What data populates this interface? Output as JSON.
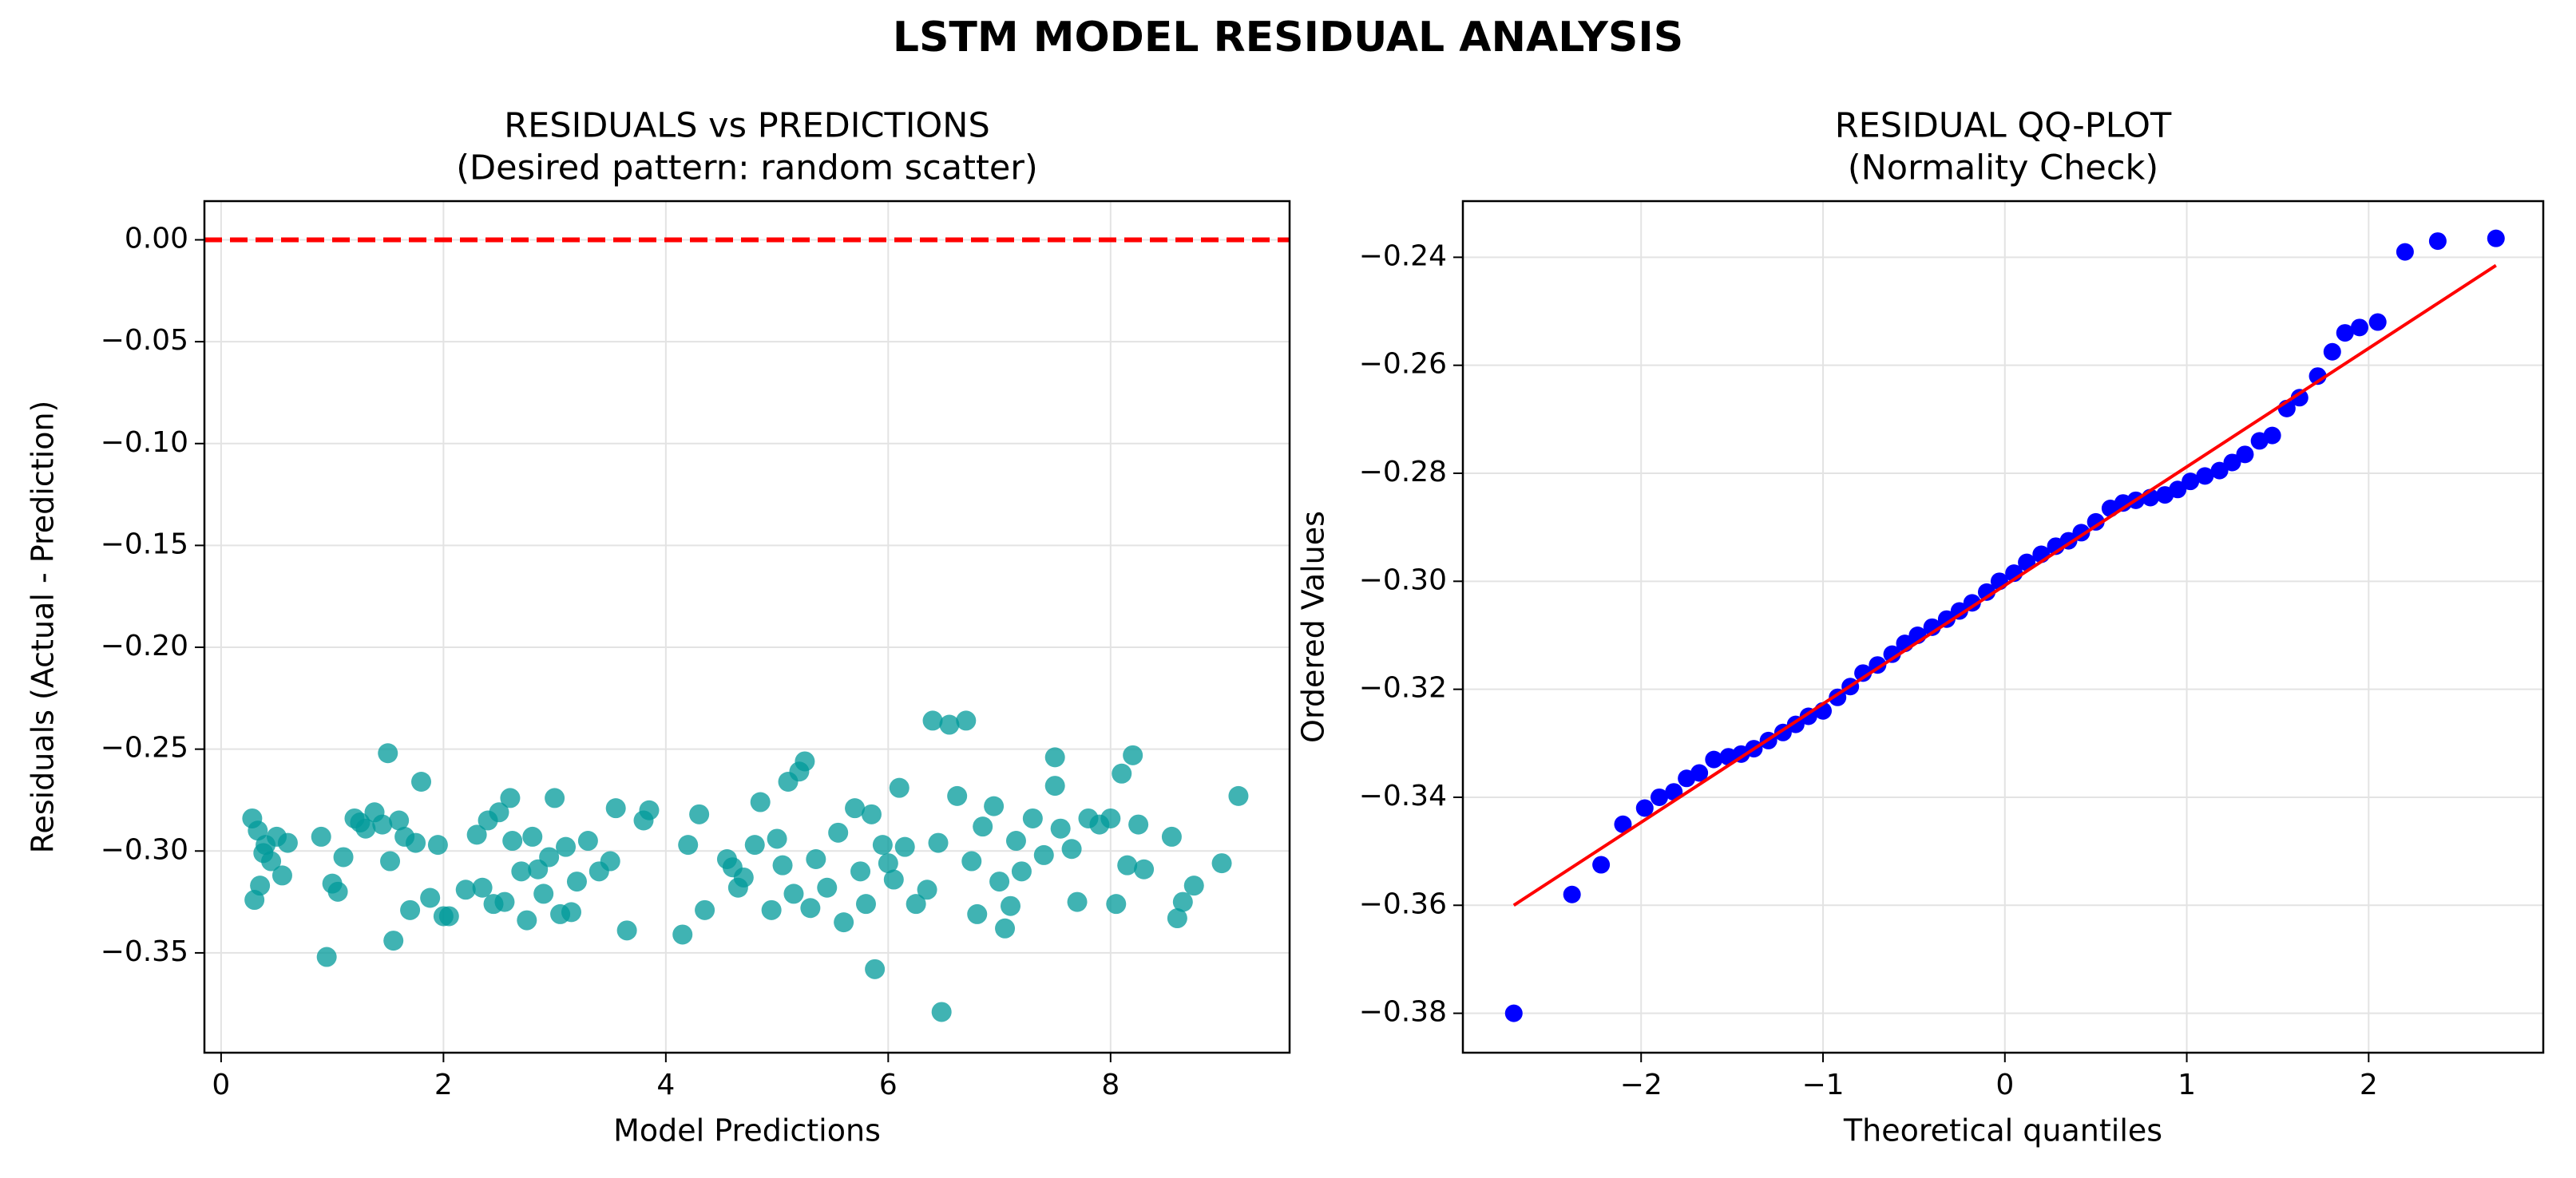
{
  "title": "LSTM MODEL RESIDUAL ANALYSIS",
  "chart_data": [
    {
      "type": "scatter",
      "title": "RESIDUALS vs PREDICTIONS",
      "subtitle": "(Desired pattern: random scatter)",
      "x_label": "Model Predictions",
      "y_label": "Residuals (Actual - Prediction)",
      "xlim": [
        -0.15,
        9.61
      ],
      "ylim": [
        -0.399,
        0.019
      ],
      "xticks": [
        0,
        2,
        4,
        6,
        8
      ],
      "yticks": [
        {
          "value": 0,
          "label": "0.00"
        },
        {
          "value": -0.05,
          "label": "−0.05"
        },
        {
          "value": -0.1,
          "label": "−0.10"
        },
        {
          "value": -0.15,
          "label": "−0.15"
        },
        {
          "value": -0.2,
          "label": "−0.20"
        },
        {
          "value": -0.25,
          "label": "−0.25"
        },
        {
          "value": -0.3,
          "label": "−0.30"
        },
        {
          "value": -0.35,
          "label": "−0.35"
        }
      ],
      "grid": true,
      "hlines": [
        {
          "y": 0,
          "color": "#ff0000",
          "dash": true
        }
      ],
      "series": [
        {
          "kind": "scatter",
          "color": "#009a9a",
          "opacity": 0.75,
          "x": [
            0.28,
            0.3,
            0.33,
            0.35,
            0.38,
            0.4,
            0.45,
            0.5,
            0.55,
            0.6,
            0.9,
            0.95,
            1.0,
            1.05,
            1.1,
            1.2,
            1.25,
            1.3,
            1.38,
            1.45,
            1.5,
            1.52,
            1.55,
            1.6,
            1.65,
            1.7,
            1.75,
            1.8,
            1.88,
            1.95,
            2.0,
            2.05,
            2.2,
            2.3,
            2.35,
            2.4,
            2.45,
            2.5,
            2.55,
            2.6,
            2.62,
            2.7,
            2.75,
            2.8,
            2.85,
            2.9,
            2.95,
            3.0,
            3.05,
            3.1,
            3.15,
            3.2,
            3.3,
            3.4,
            3.5,
            3.55,
            3.65,
            3.8,
            3.85,
            4.15,
            4.2,
            4.3,
            4.35,
            4.55,
            4.6,
            4.65,
            4.7,
            4.8,
            4.85,
            4.95,
            5.0,
            5.05,
            5.1,
            5.15,
            5.2,
            5.25,
            5.3,
            5.35,
            5.45,
            5.55,
            5.6,
            5.7,
            5.75,
            5.8,
            5.85,
            5.88,
            5.95,
            6.0,
            6.05,
            6.1,
            6.15,
            6.25,
            6.35,
            6.4,
            6.45,
            6.48,
            6.55,
            6.62,
            6.7,
            6.75,
            6.8,
            6.85,
            6.95,
            7.0,
            7.05,
            7.1,
            7.15,
            7.2,
            7.3,
            7.4,
            7.5,
            7.5,
            7.55,
            7.65,
            7.7,
            7.8,
            7.9,
            8.0,
            8.05,
            8.1,
            8.15,
            8.2,
            8.25,
            8.3,
            8.55,
            8.6,
            8.65,
            8.75,
            9.0,
            9.15
          ],
          "y": [
            -0.284,
            -0.324,
            -0.29,
            -0.317,
            -0.301,
            -0.297,
            -0.305,
            -0.293,
            -0.312,
            -0.296,
            -0.293,
            -0.352,
            -0.316,
            -0.32,
            -0.303,
            -0.284,
            -0.286,
            -0.289,
            -0.281,
            -0.287,
            -0.252,
            -0.305,
            -0.344,
            -0.285,
            -0.293,
            -0.329,
            -0.296,
            -0.266,
            -0.323,
            -0.297,
            -0.332,
            -0.332,
            -0.319,
            -0.292,
            -0.318,
            -0.285,
            -0.326,
            -0.281,
            -0.325,
            -0.274,
            -0.295,
            -0.31,
            -0.334,
            -0.293,
            -0.309,
            -0.321,
            -0.303,
            -0.274,
            -0.331,
            -0.298,
            -0.33,
            -0.315,
            -0.295,
            -0.31,
            -0.305,
            -0.279,
            -0.339,
            -0.285,
            -0.28,
            -0.341,
            -0.297,
            -0.282,
            -0.329,
            -0.304,
            -0.308,
            -0.318,
            -0.313,
            -0.297,
            -0.276,
            -0.329,
            -0.294,
            -0.307,
            -0.266,
            -0.321,
            -0.261,
            -0.256,
            -0.328,
            -0.304,
            -0.318,
            -0.291,
            -0.335,
            -0.279,
            -0.31,
            -0.326,
            -0.282,
            -0.358,
            -0.297,
            -0.306,
            -0.314,
            -0.269,
            -0.298,
            -0.326,
            -0.319,
            -0.236,
            -0.296,
            -0.379,
            -0.238,
            -0.273,
            -0.236,
            -0.305,
            -0.331,
            -0.288,
            -0.278,
            -0.315,
            -0.338,
            -0.327,
            -0.295,
            -0.31,
            -0.284,
            -0.302,
            -0.254,
            -0.268,
            -0.289,
            -0.299,
            -0.325,
            -0.284,
            -0.287,
            -0.284,
            -0.326,
            -0.262,
            -0.307,
            -0.253,
            -0.287,
            -0.309,
            -0.293,
            -0.333,
            -0.325,
            -0.317,
            -0.306,
            -0.273
          ]
        }
      ]
    },
    {
      "type": "scatter",
      "title": "RESIDUAL QQ-PLOT",
      "subtitle": "(Normality Check)",
      "x_label": "Theoretical quantiles",
      "y_label": "Ordered Values",
      "xlim": [
        -2.98,
        2.96
      ],
      "ylim": [
        -0.3873,
        -0.2296
      ],
      "xticks": [
        {
          "value": -2,
          "label": "−2"
        },
        {
          "value": -1,
          "label": "−1"
        },
        0,
        1,
        2
      ],
      "yticks": [
        {
          "value": -0.24,
          "label": "−0.24"
        },
        {
          "value": -0.26,
          "label": "−0.26"
        },
        {
          "value": -0.28,
          "label": "−0.28"
        },
        {
          "value": -0.3,
          "label": "−0.30"
        },
        {
          "value": -0.32,
          "label": "−0.32"
        },
        {
          "value": -0.34,
          "label": "−0.34"
        },
        {
          "value": -0.36,
          "label": "−0.36"
        },
        {
          "value": -0.38,
          "label": "−0.38"
        }
      ],
      "grid": true,
      "series": [
        {
          "kind": "scatter",
          "color": "#0000ff",
          "opacity": 1,
          "x": [
            -2.7,
            -2.38,
            -2.22,
            -2.1,
            -1.98,
            -1.9,
            -1.82,
            -1.75,
            -1.68,
            -1.6,
            -1.52,
            -1.45,
            -1.38,
            -1.3,
            -1.22,
            -1.15,
            -1.08,
            -1.0,
            -0.92,
            -0.85,
            -0.78,
            -0.7,
            -0.62,
            -0.55,
            -0.48,
            -0.4,
            -0.32,
            -0.25,
            -0.18,
            -0.1,
            -0.03,
            0.05,
            0.12,
            0.2,
            0.28,
            0.35,
            0.42,
            0.5,
            0.58,
            0.65,
            0.72,
            0.8,
            0.88,
            0.95,
            1.02,
            1.1,
            1.18,
            1.25,
            1.32,
            1.4,
            1.47,
            1.55,
            1.62,
            1.72,
            1.8,
            1.87,
            1.95,
            2.05,
            2.2,
            2.38,
            2.7
          ],
          "y": [
            -0.38,
            -0.358,
            -0.3525,
            -0.345,
            -0.342,
            -0.34,
            -0.339,
            -0.3365,
            -0.3355,
            -0.333,
            -0.3325,
            -0.332,
            -0.331,
            -0.3295,
            -0.328,
            -0.3265,
            -0.325,
            -0.324,
            -0.3215,
            -0.3195,
            -0.317,
            -0.3155,
            -0.3135,
            -0.3115,
            -0.31,
            -0.3085,
            -0.307,
            -0.3055,
            -0.304,
            -0.302,
            -0.3,
            -0.2985,
            -0.2965,
            -0.295,
            -0.2935,
            -0.2925,
            -0.291,
            -0.289,
            -0.2865,
            -0.2855,
            -0.285,
            -0.2845,
            -0.284,
            -0.283,
            -0.2815,
            -0.2805,
            -0.2795,
            -0.278,
            -0.2765,
            -0.274,
            -0.273,
            -0.268,
            -0.266,
            -0.262,
            -0.2575,
            -0.254,
            -0.253,
            -0.252,
            -0.239,
            -0.237,
            -0.2365
          ]
        },
        {
          "kind": "line",
          "color": "#ff0000",
          "x": [
            -2.7,
            2.7
          ],
          "y": [
            -0.36,
            -0.2415
          ]
        }
      ]
    }
  ]
}
